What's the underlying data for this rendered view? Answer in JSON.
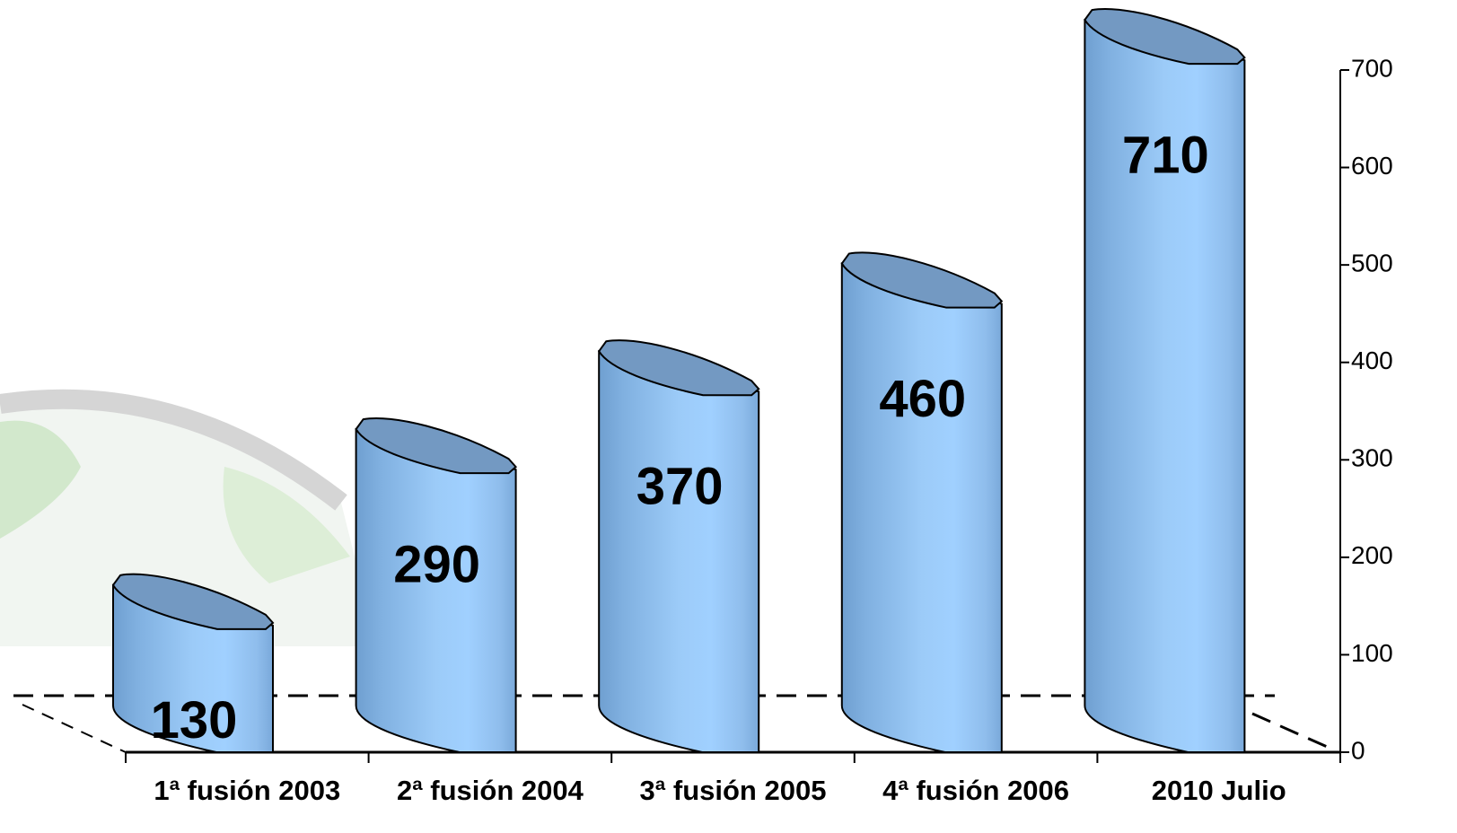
{
  "chart_data": {
    "type": "cylinder",
    "categories": [
      "1ª fusión 2003",
      "2ª fusión 2004",
      "3ª fusión 2005",
      "4ª fusión 2006",
      "2010 Julio"
    ],
    "values": [
      130,
      290,
      370,
      460,
      710
    ],
    "color": "#99ccff",
    "ylim": [
      0,
      700
    ],
    "yticks": [
      0,
      100,
      200,
      300,
      400,
      500,
      600,
      700
    ]
  }
}
